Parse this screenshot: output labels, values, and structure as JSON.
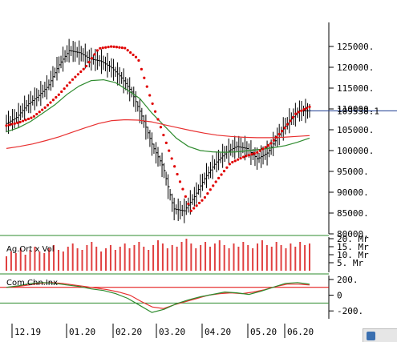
{
  "chart_data": {
    "type": "line",
    "x": [
      "12.19",
      "01.20",
      "02.20",
      "03.20",
      "04.20",
      "05.20",
      "06.20"
    ],
    "price": {
      "ylim": [
        80000,
        130000
      ],
      "yticks": [
        "125000.",
        "120000.",
        "115000.",
        "110000.",
        "105000.",
        "100000.",
        "95000.",
        "90000.",
        "85000.",
        "80000."
      ],
      "last_label": "109538.1",
      "last_value": 109538.1,
      "series": [
        {
          "color": "#000000",
          "style": "ohlc-bars",
          "values": [
            106500,
            108000,
            111000,
            113000,
            115500,
            120500,
            124000,
            123500,
            122000,
            121500,
            120000,
            117500,
            114000,
            108000,
            101000,
            96000,
            86000,
            85500,
            89000,
            93500,
            97000,
            99500,
            101000,
            100500,
            98000,
            99500,
            103500,
            107000,
            109500,
            109538
          ]
        },
        {
          "color": "#2e8b2e",
          "values": [
            104500,
            105500,
            107000,
            109000,
            111000,
            113500,
            115500,
            116800,
            117000,
            116300,
            114500,
            112500,
            109000,
            106000,
            103000,
            101000,
            100000,
            99700,
            99600,
            99700,
            100000,
            100300,
            100700,
            101200,
            102000,
            103000
          ]
        },
        {
          "color": "#e83030",
          "values": [
            100500,
            101000,
            101600,
            102400,
            103300,
            104400,
            105500,
            106500,
            107200,
            107400,
            107300,
            106900,
            106200,
            105500,
            104800,
            104200,
            103700,
            103400,
            103200,
            103100,
            103100,
            103200,
            103400,
            103600
          ]
        },
        {
          "color": "#e00000",
          "style": "parabolic-sar-dots",
          "values": [
            106000,
            106800,
            108000,
            110500,
            113500,
            117000,
            120000,
            124500,
            125000,
            124600,
            122000,
            112000,
            103000,
            94000,
            85500,
            88500,
            93000,
            97000,
            98500,
            99500,
            101500,
            105000,
            109000,
            110500
          ]
        }
      ]
    },
    "volume": {
      "label": "Ag.Ort x Vol",
      "yticks": [
        "20. Mr",
        "15. Mr",
        "10. Mr",
        "5. Mr"
      ],
      "series": [
        {
          "name": "Ag.Ort x Vol",
          "color": "#e04040",
          "values": [
            9,
            12,
            11,
            14,
            10,
            13,
            15,
            12,
            11,
            14,
            16,
            13,
            12,
            15,
            17,
            14,
            13,
            16,
            18,
            15,
            12,
            14,
            16,
            13,
            15,
            17,
            14,
            16,
            18,
            15,
            13,
            16,
            19,
            17,
            14,
            16,
            15,
            18,
            20,
            17,
            14,
            16,
            18,
            15,
            17,
            19,
            16,
            14,
            17,
            15,
            18,
            16,
            14,
            17,
            19,
            16,
            15,
            18,
            16,
            14,
            17,
            15,
            18,
            16,
            17
          ]
        }
      ]
    },
    "oscillator": {
      "label": "Com.Chn.Inx",
      "ylim": [
        -300,
        250
      ],
      "yticks": [
        "200.",
        "0",
        "-200."
      ],
      "reference_lines": [
        {
          "value": 100,
          "color": "#e00000"
        },
        {
          "value": -100,
          "color": "#2e8b2e"
        }
      ],
      "series": [
        {
          "color": "#e83030",
          "values": [
            100,
            110,
            130,
            150,
            160,
            150,
            130,
            110,
            90,
            70,
            40,
            0,
            -80,
            -150,
            -170,
            -120,
            -80,
            -40,
            0,
            20,
            30,
            20,
            40,
            70,
            110,
            140,
            140,
            130
          ]
        },
        {
          "color": "#2e8b2e",
          "values": [
            100,
            120,
            150,
            160,
            150,
            130,
            110,
            80,
            60,
            20,
            -40,
            -130,
            -220,
            -180,
            -110,
            -60,
            -20,
            10,
            40,
            30,
            10,
            50,
            100,
            150,
            160,
            140
          ]
        }
      ]
    }
  }
}
